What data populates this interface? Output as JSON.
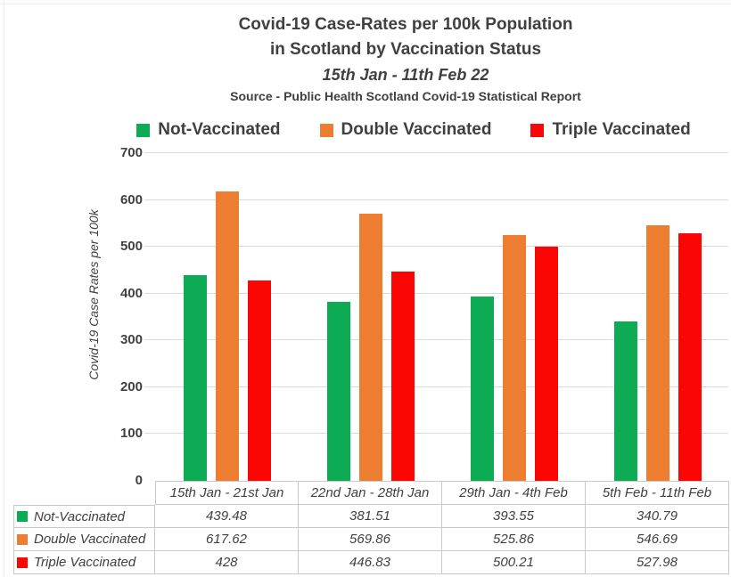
{
  "title": {
    "line1": "Covid-19 Case-Rates per 100k Population",
    "line2": "in Scotland by Vaccination Status",
    "line3": "15th Jan - 11th Feb 22",
    "source": "Source - Public Health Scotland Covid-19 Statistical Report"
  },
  "legend": {
    "items": [
      {
        "label": "Not-Vaccinated",
        "color": "#0dac54"
      },
      {
        "label": "Double Vaccinated",
        "color": "#ed7d31"
      },
      {
        "label": "Triple Vaccinated",
        "color": "#fb0505"
      }
    ]
  },
  "y_axis": {
    "label": "Covid-19 Case Rates per 100k",
    "ticks": [
      700,
      600,
      500,
      400,
      300,
      200,
      100,
      0
    ]
  },
  "colors": {
    "text": "#404040",
    "gridline": "#d9d9d9",
    "table_border": "#c9c9c9"
  },
  "chart_data": {
    "type": "bar",
    "title": "Covid-19 Case-Rates per 100k Population in Scotland by Vaccination Status",
    "subtitle": "15th Jan - 11th Feb 22",
    "source": "Source - Public Health Scotland Covid-19 Statistical Report",
    "categories": [
      "15th Jan - 21st Jan",
      "22nd Jan - 28th Jan",
      "29th Jan - 4th Feb",
      "5th Feb - 11th Feb"
    ],
    "series": [
      {
        "name": "Not-Vaccinated",
        "color": "#0dac54",
        "values": [
          439.48,
          381.51,
          393.55,
          340.79
        ]
      },
      {
        "name": "Double Vaccinated",
        "color": "#ed7d31",
        "values": [
          617.62,
          569.86,
          525.86,
          546.69
        ]
      },
      {
        "name": "Triple Vaccinated",
        "color": "#fb0505",
        "values": [
          428,
          446.83,
          500.21,
          527.98
        ]
      }
    ],
    "xlabel": "",
    "ylabel": "Covid-19 Case Rates per 100k",
    "ylim": [
      0,
      700
    ],
    "y_tick_step": 100,
    "grid": true,
    "legend_position": "top",
    "data_table_shown": true
  }
}
